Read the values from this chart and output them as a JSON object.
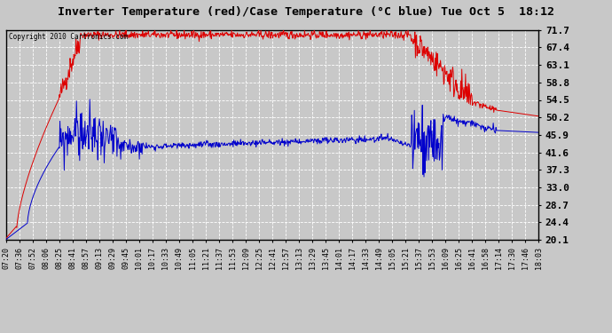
{
  "title": "Inverter Temperature (red)/Case Temperature (°C blue) Tue Oct 5  18:12",
  "copyright": "Copyright 2010 Cartronics.com",
  "bg_color": "#c8c8c8",
  "plot_bg_color": "#c8c8c8",
  "grid_color": "white",
  "red_color": "#dd0000",
  "blue_color": "#0000cc",
  "ymin": 20.1,
  "ymax": 71.7,
  "yticks": [
    20.1,
    24.4,
    28.7,
    33.0,
    37.3,
    41.6,
    45.9,
    50.2,
    54.5,
    58.8,
    63.1,
    67.4,
    71.7
  ],
  "xtick_labels": [
    "07:20",
    "07:36",
    "07:52",
    "08:06",
    "08:25",
    "08:41",
    "08:57",
    "09:13",
    "09:29",
    "09:45",
    "10:01",
    "10:17",
    "10:33",
    "10:49",
    "11:05",
    "11:21",
    "11:37",
    "11:53",
    "12:09",
    "12:25",
    "12:41",
    "12:57",
    "13:13",
    "13:29",
    "13:45",
    "14:01",
    "14:17",
    "14:33",
    "14:49",
    "15:05",
    "15:21",
    "15:37",
    "15:53",
    "16:09",
    "16:25",
    "16:41",
    "16:58",
    "17:14",
    "17:30",
    "17:46",
    "18:03"
  ]
}
